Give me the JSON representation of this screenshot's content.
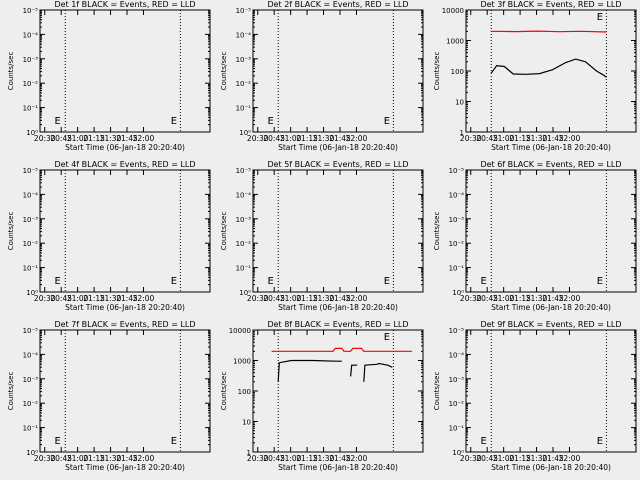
{
  "chart_data": [
    {
      "type": "line",
      "title": "Det 1f BLACK = Events, RED = LLD",
      "xlabel": "Start Time (06-Jan-18 20:20:40)",
      "ylabel": "Counts/sec",
      "yscale": "log",
      "ylim": [
        1,
        100000
      ],
      "yticks": [
        "10⁰",
        "10⁻¹",
        "10⁻²",
        "10⁻³",
        "10⁻⁴",
        "10⁻⁵"
      ],
      "xticks": [
        "20:30",
        "20:45",
        "21:00",
        "21:15",
        "21:30",
        "21:45",
        "22:00"
      ],
      "xlim_min": [
        20,
        100
      ],
      "vlines_min": [
        28,
        133
      ],
      "markers": [
        {
          "label": "E",
          "t_min": 21
        },
        {
          "label": "E",
          "t_min": 127
        }
      ],
      "series": []
    },
    {
      "type": "line",
      "title": "Det 2f BLACK = Events, RED = LLD",
      "xlabel": "Start Time (06-Jan-18 20:20:40)",
      "ylabel": "Counts/sec",
      "yscale": "log",
      "ylim": [
        1,
        100000
      ],
      "yticks": [
        "10⁰",
        "10⁻¹",
        "10⁻²",
        "10⁻³",
        "10⁻⁴",
        "10⁻⁵"
      ],
      "xticks": [
        "20:30",
        "20:45",
        "21:00",
        "21:15",
        "21:30",
        "21:45",
        "22:00"
      ],
      "xlim_min": [
        20,
        100
      ],
      "vlines_min": [
        28,
        133
      ],
      "markers": [
        {
          "label": "E",
          "t_min": 21
        },
        {
          "label": "E",
          "t_min": 127
        }
      ],
      "series": []
    },
    {
      "type": "line",
      "title": "Det 3f BLACK = Events, RED = LLD",
      "xlabel": "Start Time (06-Jan-18 20:20:40)",
      "ylabel": "Counts/sec",
      "yscale": "log",
      "ylim": [
        1,
        10000
      ],
      "yticks": [
        "1",
        "10",
        "100",
        "1000",
        "10000"
      ],
      "xticks": [
        "20:30",
        "20:45",
        "21:00",
        "21:15",
        "21:30",
        "21:45",
        "22:00"
      ],
      "xlim_min": [
        20,
        100
      ],
      "vlines_min": [
        28,
        133
      ],
      "markers": [
        {
          "label": "E",
          "t_min": 127
        }
      ],
      "series": [
        {
          "name": "RED = LLD",
          "color": "#ff0000",
          "points": [
            [
              28,
              2000
            ],
            [
              50,
              1960
            ],
            [
              70,
              2040
            ],
            [
              90,
              1950
            ],
            [
              110,
              2000
            ],
            [
              133,
              1900
            ]
          ]
        },
        {
          "name": "BLACK = Events",
          "color": "#000000",
          "points": [
            [
              28,
              85
            ],
            [
              33,
              150
            ],
            [
              40,
              140
            ],
            [
              48,
              80
            ],
            [
              60,
              78
            ],
            [
              72,
              82
            ],
            [
              84,
              110
            ],
            [
              96,
              190
            ],
            [
              105,
              245
            ],
            [
              114,
              200
            ],
            [
              124,
              100
            ],
            [
              130,
              75
            ],
            [
              133,
              62
            ]
          ]
        }
      ]
    },
    {
      "type": "line",
      "title": "Det 4f BLACK = Events, RED = LLD",
      "xlabel": "Start Time (06-Jan-18 20:20:40)",
      "ylabel": "Counts/sec",
      "yscale": "log",
      "ylim": [
        1,
        100000
      ],
      "yticks": [
        "10⁰",
        "10⁻¹",
        "10⁻²",
        "10⁻³",
        "10⁻⁴",
        "10⁻⁵"
      ],
      "xticks": [
        "20:30",
        "20:45",
        "21:00",
        "21:15",
        "21:30",
        "21:45",
        "22:00"
      ],
      "xlim_min": [
        20,
        100
      ],
      "vlines_min": [
        28,
        133
      ],
      "markers": [
        {
          "label": "E",
          "t_min": 21
        },
        {
          "label": "E",
          "t_min": 127
        }
      ],
      "series": []
    },
    {
      "type": "line",
      "title": "Det 5f BLACK = Events, RED = LLD",
      "xlabel": "Start Time (06-Jan-18 20:20:40)",
      "ylabel": "Counts/sec",
      "yscale": "log",
      "ylim": [
        1,
        100000
      ],
      "yticks": [
        "10⁰",
        "10⁻¹",
        "10⁻²",
        "10⁻³",
        "10⁻⁴",
        "10⁻⁵"
      ],
      "xticks": [
        "20:30",
        "20:45",
        "21:00",
        "21:15",
        "21:30",
        "21:45",
        "22:00"
      ],
      "xlim_min": [
        20,
        100
      ],
      "vlines_min": [
        28,
        133
      ],
      "markers": [
        {
          "label": "E",
          "t_min": 21
        },
        {
          "label": "E",
          "t_min": 127
        }
      ],
      "series": []
    },
    {
      "type": "line",
      "title": "Det 6f BLACK = Events, RED = LLD",
      "xlabel": "Start Time (06-Jan-18 20:20:40)",
      "ylabel": "Counts/sec",
      "yscale": "log",
      "ylim": [
        1,
        100000
      ],
      "yticks": [
        "10⁰",
        "10⁻¹",
        "10⁻²",
        "10⁻³",
        "10⁻⁴",
        "10⁻⁵"
      ],
      "xticks": [
        "20:30",
        "20:45",
        "21:00",
        "21:15",
        "21:30",
        "21:45",
        "22:00"
      ],
      "xlim_min": [
        20,
        100
      ],
      "vlines_min": [
        28,
        133
      ],
      "markers": [
        {
          "label": "E",
          "t_min": 21
        },
        {
          "label": "E",
          "t_min": 127
        }
      ],
      "series": []
    },
    {
      "type": "line",
      "title": "Det 7f BLACK = Events, RED = LLD",
      "xlabel": "Start Time (06-Jan-18 20:20:40)",
      "ylabel": "Counts/sec",
      "yscale": "log",
      "ylim": [
        1,
        100000
      ],
      "yticks": [
        "10⁰",
        "10⁻¹",
        "10⁻²",
        "10⁻³",
        "10⁻⁴",
        "10⁻⁵"
      ],
      "xticks": [
        "20:30",
        "20:45",
        "21:00",
        "21:15",
        "21:30",
        "21:45",
        "22:00"
      ],
      "xlim_min": [
        20,
        100
      ],
      "vlines_min": [
        28,
        133
      ],
      "markers": [
        {
          "label": "E",
          "t_min": 21
        },
        {
          "label": "E",
          "t_min": 127
        }
      ],
      "series": []
    },
    {
      "type": "line",
      "title": "Det 8f BLACK = Events, RED = LLD",
      "xlabel": "Start Time (06-Jan-18 20:20:40)",
      "ylabel": "Counts/sec",
      "yscale": "log",
      "ylim": [
        1,
        10000
      ],
      "yticks": [
        "1",
        "10",
        "100",
        "1000",
        "10000"
      ],
      "xticks": [
        "20:30",
        "20:45",
        "21:00",
        "21:15",
        "21:30",
        "21:45",
        "22:00"
      ],
      "xlim_min": [
        20,
        100
      ],
      "vlines_min": [
        28,
        133
      ],
      "markers": [
        {
          "label": "E",
          "t_min": 127
        }
      ],
      "series": [
        {
          "name": "RED = LLD",
          "color": "#ff0000",
          "points": [
            [
              22,
              2000
            ],
            [
              50,
              2000
            ],
            [
              78,
              2000
            ],
            [
              80,
              2500
            ],
            [
              86,
              2500
            ],
            [
              88,
              2000
            ],
            [
              94,
              2000
            ],
            [
              96,
              2500
            ],
            [
              104,
              2500
            ],
            [
              106,
              2000
            ],
            [
              150,
              2000
            ]
          ]
        },
        {
          "name": "BLACK = Events",
          "color": "#000000",
          "segments": [
            [
              [
                28,
                200
              ],
              [
                29,
                850
              ],
              [
                40,
                1000
              ],
              [
                60,
                1000
              ],
              [
                80,
                950
              ],
              [
                86,
                950
              ]
            ],
            [
              [
                94,
                300
              ],
              [
                95,
                700
              ],
              [
                100,
                700
              ]
            ],
            [
              [
                106,
                200
              ],
              [
                107,
                700
              ],
              [
                118,
                750
              ],
              [
                120,
                800
              ],
              [
                128,
                700
              ],
              [
                132,
                600
              ]
            ]
          ]
        }
      ]
    },
    {
      "type": "line",
      "title": "Det 9f BLACK = Events, RED = LLD",
      "xlabel": "Start Time (06-Jan-18 20:20:40)",
      "ylabel": "Counts/sec",
      "yscale": "log",
      "ylim": [
        1,
        100000
      ],
      "yticks": [
        "10⁰",
        "10⁻¹",
        "10⁻²",
        "10⁻³",
        "10⁻⁴",
        "10⁻⁵"
      ],
      "xticks": [
        "20:30",
        "20:45",
        "21:00",
        "21:15",
        "21:30",
        "21:45",
        "22:00"
      ],
      "xlim_min": [
        20,
        100
      ],
      "vlines_min": [
        28,
        133
      ],
      "markers": [
        {
          "label": "E",
          "t_min": 21
        },
        {
          "label": "E",
          "t_min": 127
        }
      ],
      "series": []
    }
  ]
}
